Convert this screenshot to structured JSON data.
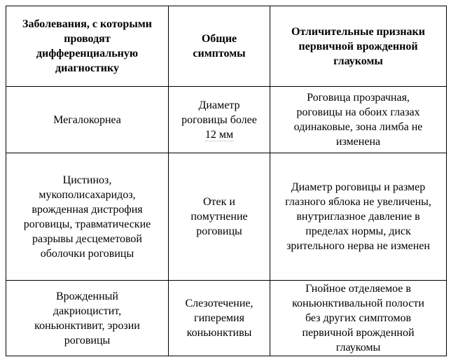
{
  "table": {
    "headers": [
      "Заболевания, с которыми\nпроводят\nдифференциальную\nдиагностику",
      "Общие\nсимптомы",
      "Отличительные признаки\nпервичной врожденной\nглаукомы"
    ],
    "rows": [
      {
        "disease": "Мегалокорнеа",
        "symptoms_main": "Диаметр\nроговицы более\n",
        "symptoms_tail": "12 мм",
        "signs": "Роговица прозрачная,\nроговицы на обоих глазах\nодинаковые, зона лимба не\nизменена"
      },
      {
        "disease": "Цистиноз,\nмукополисахаридоз,\nврожденная дистрофия\nроговицы, травматические\nразрывы десцеметовой\nоболочки роговицы",
        "symptoms_main": "Отек и\nпомутнение\nроговицы",
        "signs": "Диаметр роговицы и размер\nглазного яблока не увеличены,\nвнутриглазное давление в\nпределах нормы, диск\nзрительного нерва не изменен"
      },
      {
        "disease": "Врожденный\nдакриоцистит,\nконьюнктивит, эрозии\nроговицы",
        "symptoms_main": "Слезотечение,\nгиперемия\nконьюнктивы",
        "signs": "Гнойное отделяемое в\nконьюнктивальной полости\nбез других симптомов\nпервичной врожденной\nглаукомы"
      }
    ]
  }
}
